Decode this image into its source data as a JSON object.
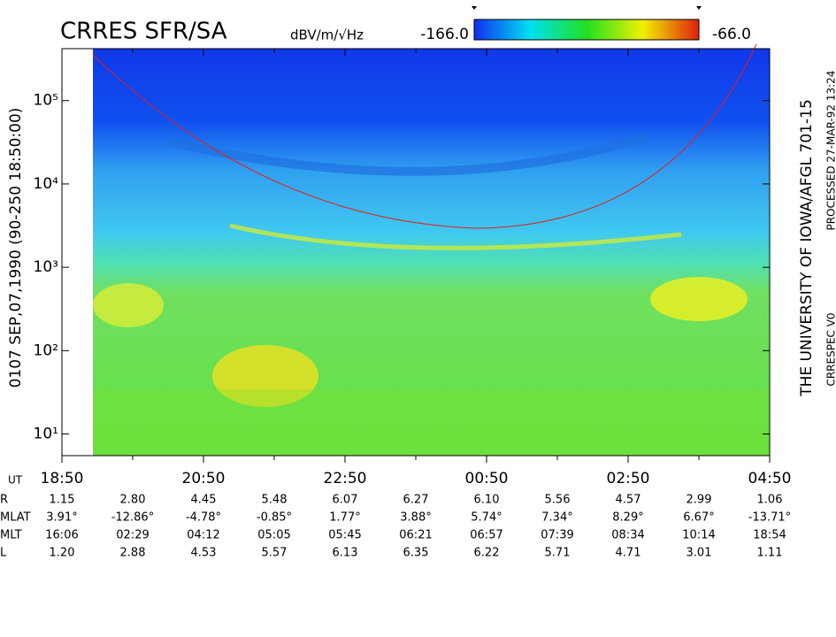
{
  "chart_data": {
    "type": "spectrogram",
    "title": "CRRES SFR/SA",
    "colorbar_label": "dBV/m/√Hz",
    "zlim": [
      {
        "value": -166,
        "label": "-166.0"
      },
      {
        "value": -66,
        "label": "-66.0"
      }
    ],
    "y_label": "0107  SEP,07,1990  (90-250 18:50:00)",
    "log_y": true,
    "ylim": [
      5.5,
      420000
    ],
    "yticks": [
      {
        "value": 10,
        "label": "10¹"
      },
      {
        "value": 100,
        "label": "10²"
      },
      {
        "value": 1000,
        "label": "10³"
      },
      {
        "value": 10000,
        "label": "10⁴"
      },
      {
        "value": 100000,
        "label": "10⁵"
      }
    ],
    "xticks": [
      "18:50",
      "20:50",
      "22:50",
      "00:50",
      "02:50",
      "04:50"
    ],
    "credits": [
      "THE UNIVERSITY OF IOWA/AFGL 701-15",
      "PROCESSED 27-MAR-92  13:24",
      "CRRESPEC V0"
    ],
    "ephemeris": {
      "time_label": "UT",
      "rows": [
        {
          "label": "R",
          "values": [
            "1.15",
            "2.80",
            "4.45",
            "5.48",
            "6.07",
            "6.27",
            "6.10",
            "5.56",
            "4.57",
            "2.99",
            "1.06"
          ]
        },
        {
          "label": "MLAT",
          "values": [
            "3.91°",
            "-12.86°",
            "-4.78°",
            "-0.85°",
            "1.77°",
            "3.88°",
            "5.74°",
            "7.34°",
            "8.29°",
            "6.67°",
            "-13.71°"
          ]
        },
        {
          "label": "MLT",
          "values": [
            "16:06",
            "02:29",
            "04:12",
            "05:05",
            "05:45",
            "06:21",
            "06:57",
            "07:39",
            "08:34",
            "10:14",
            "18:54"
          ]
        },
        {
          "label": "L",
          "values": [
            "1.20",
            "2.88",
            "4.53",
            "5.57",
            "6.13",
            "6.35",
            "6.22",
            "5.71",
            "4.71",
            "3.01",
            "1.11"
          ]
        }
      ]
    }
  }
}
